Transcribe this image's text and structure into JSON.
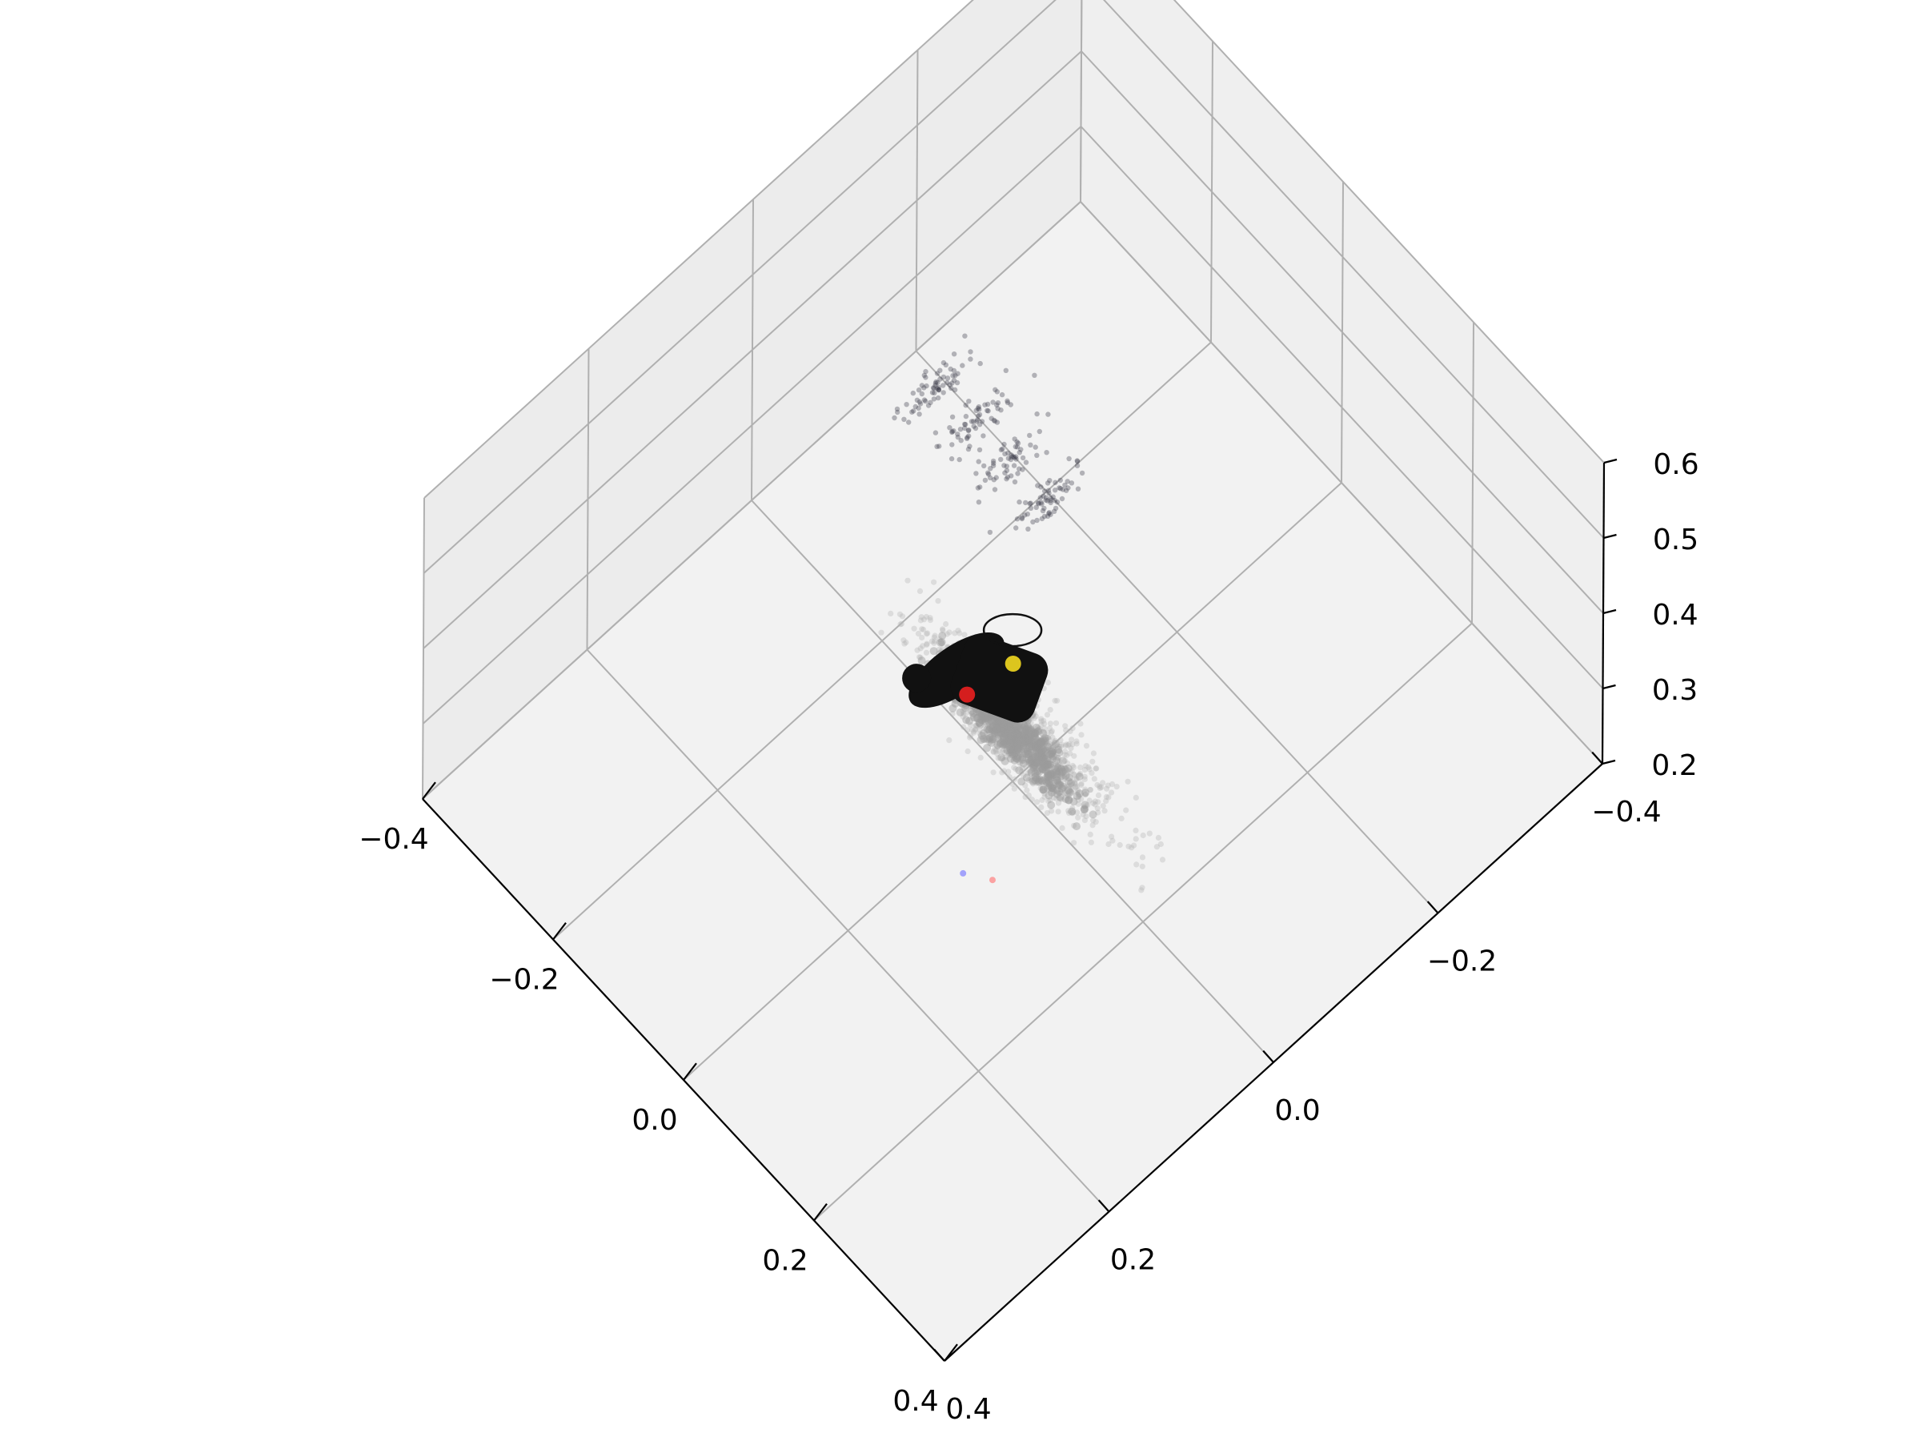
{
  "chart_data": {
    "type": "scatter",
    "projection": "3d",
    "title": "",
    "xlabel": "",
    "ylabel": "",
    "zlabel": "",
    "grid": true,
    "legend": "none",
    "xlim": [
      -0.4,
      0.4
    ],
    "ylim": [
      -0.4,
      0.4
    ],
    "zlim": [
      0.2,
      0.6
    ],
    "x_ticks": [
      "0.4",
      "0.2",
      "0.0",
      "−0.2",
      "−0.4"
    ],
    "y_ticks": [
      "0.4",
      "0.2",
      "0.0",
      "−0.2",
      "−0.4"
    ],
    "z_ticks": [
      "0.2",
      "0.3",
      "0.4",
      "0.5",
      "0.6"
    ],
    "series": [
      {
        "role": "point-cloud-halo",
        "color": "#b4b4b4",
        "x_range": [
          -0.34,
          0.28
        ],
        "y_range": [
          -0.1,
          0.04
        ],
        "z_approx": 0.21
      },
      {
        "role": "point-cloud-core",
        "color": "#9c9c9c",
        "x_range": [
          -0.22,
          0.16
        ],
        "y_range": [
          -0.06,
          0.02
        ],
        "z_approx": 0.22
      },
      {
        "role": "scattered-clusters",
        "color": "#3a3a48",
        "x_range": [
          -0.38,
          -0.16
        ],
        "y_range": [
          -0.26,
          -0.12
        ],
        "z_approx": 0.21
      },
      {
        "role": "object",
        "color": "#111111",
        "center": [
          -0.05,
          -0.02,
          0.26
        ]
      },
      {
        "role": "marker",
        "color": "#e8d020",
        "point": [
          -0.05,
          -0.04,
          0.27
        ]
      },
      {
        "role": "marker",
        "color": "#e02020",
        "point": [
          -0.07,
          0.0,
          0.25
        ]
      },
      {
        "role": "marker",
        "color": "#ff8080",
        "point": [
          0.12,
          0.12,
          0.3
        ]
      },
      {
        "role": "marker",
        "color": "#8080ff",
        "point": [
          0.1,
          0.14,
          0.31
        ]
      }
    ]
  }
}
